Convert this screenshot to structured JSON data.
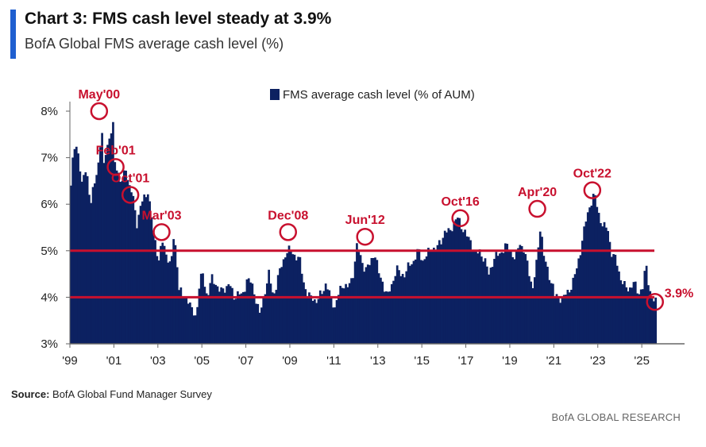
{
  "header": {
    "title": "Chart 3: FMS cash level steady at 3.9%",
    "subtitle": "BofA Global FMS average cash level (%)"
  },
  "footer": {
    "source_label": "Source:",
    "source_text": " BofA Global Fund Manager Survey",
    "brand": "BofA GLOBAL RESEARCH"
  },
  "colors": {
    "bars": "#0c2161",
    "reference_lines": "#c8102e",
    "annotations": "#c8102e",
    "accent": "#1f5fd0"
  },
  "chart_data": {
    "type": "bar",
    "legend": {
      "label": "FMS average cash level (% of AUM)",
      "placement": "top-center"
    },
    "ylim": [
      3,
      8.3
    ],
    "y_ticks": [
      "3%",
      "4%",
      "5%",
      "6%",
      "7%",
      "8%"
    ],
    "y_tick_values": [
      3,
      4,
      5,
      6,
      7,
      8
    ],
    "x_ticks": [
      "'99",
      "'01",
      "'03",
      "'05",
      "'07",
      "'09",
      "'11",
      "'13",
      "'15",
      "'17",
      "'19",
      "'21",
      "'23",
      "'25"
    ],
    "x_tick_years": [
      1999,
      2001,
      2003,
      2005,
      2007,
      2009,
      2011,
      2013,
      2015,
      2017,
      2019,
      2021,
      2023,
      2025
    ],
    "x_range": [
      1999.0,
      2026.8
    ],
    "reference_lines": [
      4.0,
      5.0
    ],
    "grid": false,
    "keypoints": [
      [
        1999.0,
        6.4
      ],
      [
        1999.1,
        7.0
      ],
      [
        1999.2,
        7.3
      ],
      [
        1999.35,
        7.1
      ],
      [
        1999.5,
        6.4
      ],
      [
        1999.7,
        6.8
      ],
      [
        1999.9,
        6.0
      ],
      [
        2000.1,
        6.5
      ],
      [
        2000.25,
        6.9
      ],
      [
        2000.4,
        7.6
      ],
      [
        2000.5,
        6.8
      ],
      [
        2000.6,
        7.2
      ],
      [
        2000.8,
        7.5
      ],
      [
        2000.95,
        7.7
      ],
      [
        2001.0,
        6.9
      ],
      [
        2001.1,
        6.8
      ],
      [
        2001.3,
        6.4
      ],
      [
        2001.5,
        6.8
      ],
      [
        2001.65,
        6.4
      ],
      [
        2001.8,
        6.2
      ],
      [
        2002.0,
        5.6
      ],
      [
        2002.2,
        6.0
      ],
      [
        2002.5,
        6.3
      ],
      [
        2002.75,
        5.4
      ],
      [
        2003.0,
        4.8
      ],
      [
        2003.15,
        5.2
      ],
      [
        2003.3,
        5.0
      ],
      [
        2003.45,
        4.8
      ],
      [
        2003.55,
        4.6
      ],
      [
        2003.65,
        5.3
      ],
      [
        2003.8,
        5.0
      ],
      [
        2003.9,
        4.2
      ],
      [
        2004.1,
        4.0
      ],
      [
        2004.3,
        4.0
      ],
      [
        2004.5,
        3.7
      ],
      [
        2004.7,
        3.6
      ],
      [
        2004.85,
        4.3
      ],
      [
        2005.0,
        4.5
      ],
      [
        2005.2,
        4.0
      ],
      [
        2005.4,
        4.4
      ],
      [
        2005.6,
        4.3
      ],
      [
        2005.8,
        4.1
      ],
      [
        2006.0,
        4.2
      ],
      [
        2006.2,
        4.3
      ],
      [
        2006.4,
        4.0
      ],
      [
        2006.6,
        4.1
      ],
      [
        2006.8,
        4.0
      ],
      [
        2007.0,
        4.4
      ],
      [
        2007.2,
        4.3
      ],
      [
        2007.4,
        4.0
      ],
      [
        2007.6,
        3.6
      ],
      [
        2007.8,
        4.1
      ],
      [
        2008.0,
        4.5
      ],
      [
        2008.2,
        4.0
      ],
      [
        2008.4,
        4.4
      ],
      [
        2008.6,
        4.7
      ],
      [
        2008.8,
        5.0
      ],
      [
        2009.0,
        5.0
      ],
      [
        2009.2,
        4.9
      ],
      [
        2009.4,
        4.8
      ],
      [
        2009.6,
        4.3
      ],
      [
        2009.8,
        4.0
      ],
      [
        2010.0,
        4.0
      ],
      [
        2010.2,
        3.9
      ],
      [
        2010.4,
        4.1
      ],
      [
        2010.6,
        4.3
      ],
      [
        2010.8,
        4.0
      ],
      [
        2011.0,
        3.8
      ],
      [
        2011.2,
        4.1
      ],
      [
        2011.4,
        4.3
      ],
      [
        2011.6,
        4.2
      ],
      [
        2011.8,
        4.4
      ],
      [
        2012.0,
        5.1
      ],
      [
        2012.2,
        4.8
      ],
      [
        2012.4,
        4.6
      ],
      [
        2012.6,
        4.7
      ],
      [
        2012.8,
        5.0
      ],
      [
        2013.0,
        4.5
      ],
      [
        2013.2,
        4.3
      ],
      [
        2013.4,
        4.0
      ],
      [
        2013.6,
        4.3
      ],
      [
        2013.8,
        4.6
      ],
      [
        2014.0,
        4.5
      ],
      [
        2014.2,
        4.5
      ],
      [
        2014.4,
        4.7
      ],
      [
        2014.6,
        4.8
      ],
      [
        2014.8,
        5.0
      ],
      [
        2015.0,
        4.8
      ],
      [
        2015.2,
        4.9
      ],
      [
        2015.4,
        5.1
      ],
      [
        2015.6,
        5.0
      ],
      [
        2015.8,
        5.2
      ],
      [
        2016.0,
        5.4
      ],
      [
        2016.2,
        5.4
      ],
      [
        2016.4,
        5.6
      ],
      [
        2016.6,
        5.7
      ],
      [
        2016.8,
        5.5
      ],
      [
        2017.0,
        5.3
      ],
      [
        2017.2,
        5.2
      ],
      [
        2017.4,
        4.9
      ],
      [
        2017.6,
        5.0
      ],
      [
        2017.8,
        4.8
      ],
      [
        2018.0,
        4.5
      ],
      [
        2018.2,
        4.8
      ],
      [
        2018.4,
        4.9
      ],
      [
        2018.6,
        5.0
      ],
      [
        2018.8,
        5.1
      ],
      [
        2019.0,
        5.0
      ],
      [
        2019.2,
        4.8
      ],
      [
        2019.4,
        5.2
      ],
      [
        2019.6,
        5.0
      ],
      [
        2019.8,
        4.6
      ],
      [
        2020.0,
        4.2
      ],
      [
        2020.2,
        4.8
      ],
      [
        2020.35,
        5.6
      ],
      [
        2020.5,
        4.9
      ],
      [
        2020.7,
        4.5
      ],
      [
        2020.9,
        4.3
      ],
      [
        2021.0,
        4.0
      ],
      [
        2021.2,
        4.0
      ],
      [
        2021.4,
        4.0
      ],
      [
        2021.6,
        4.1
      ],
      [
        2021.8,
        4.3
      ],
      [
        2022.0,
        4.6
      ],
      [
        2022.2,
        5.1
      ],
      [
        2022.4,
        5.6
      ],
      [
        2022.6,
        6.0
      ],
      [
        2022.8,
        6.2
      ],
      [
        2023.0,
        5.8
      ],
      [
        2023.2,
        5.5
      ],
      [
        2023.4,
        5.5
      ],
      [
        2023.6,
        4.9
      ],
      [
        2023.8,
        4.8
      ],
      [
        2024.0,
        4.4
      ],
      [
        2024.2,
        4.2
      ],
      [
        2024.4,
        4.2
      ],
      [
        2024.6,
        4.3
      ],
      [
        2024.8,
        4.1
      ],
      [
        2025.0,
        4.2
      ],
      [
        2025.15,
        4.7
      ],
      [
        2025.3,
        4.2
      ],
      [
        2025.45,
        3.9
      ],
      [
        2025.6,
        3.9
      ]
    ],
    "annotations": [
      {
        "label": "May'00",
        "year": 2000.33,
        "value": 8.0
      },
      {
        "label": "Feb'01",
        "year": 2001.08,
        "value": 6.8
      },
      {
        "label": "Oct'01",
        "year": 2001.75,
        "value": 6.2
      },
      {
        "label": "Mar'03",
        "year": 2003.17,
        "value": 5.4
      },
      {
        "label": "Dec'08",
        "year": 2008.92,
        "value": 5.4
      },
      {
        "label": "Jun'12",
        "year": 2012.42,
        "value": 5.3
      },
      {
        "label": "Oct'16",
        "year": 2016.75,
        "value": 5.7
      },
      {
        "label": "Apr'20",
        "year": 2020.25,
        "value": 5.9
      },
      {
        "label": "Oct'22",
        "year": 2022.75,
        "value": 6.3
      },
      {
        "label": "3.9%",
        "year": 2025.6,
        "value": 3.9
      }
    ]
  }
}
